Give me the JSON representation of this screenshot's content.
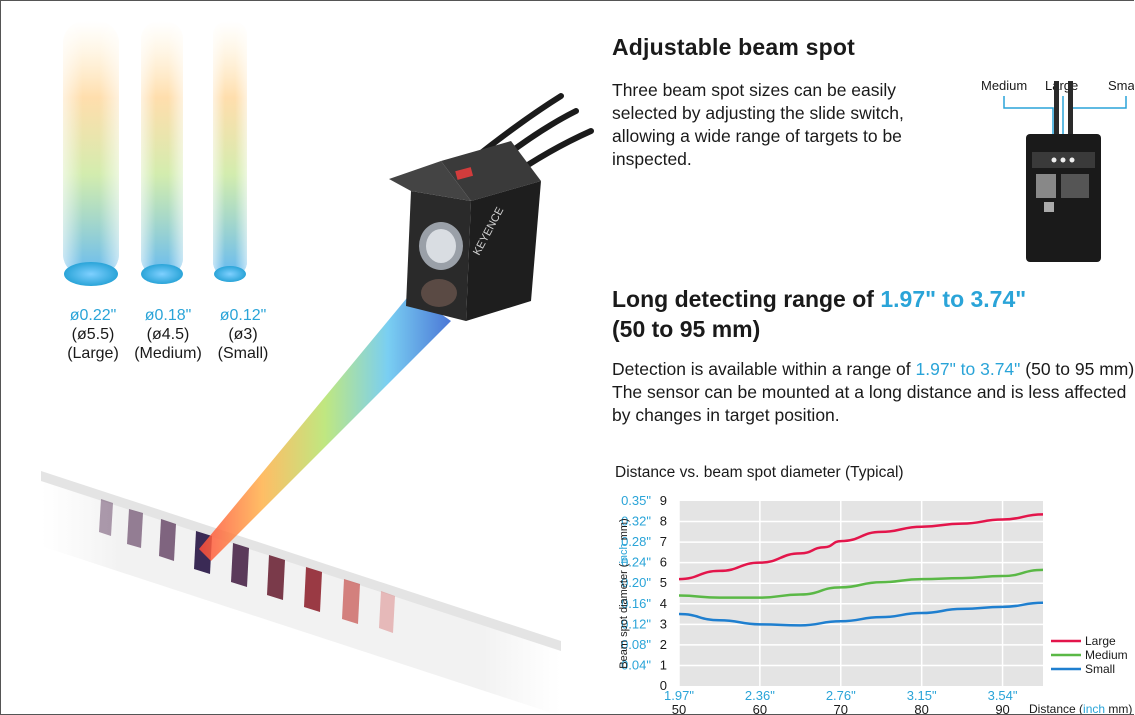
{
  "hero": {
    "spots": [
      {
        "size_inch": "ø0.22\"",
        "size_mm": "(ø5.5)",
        "name": "(Large)"
      },
      {
        "size_inch": "ø0.18\"",
        "size_mm": "(ø4.5)",
        "name": "(Medium)"
      },
      {
        "size_inch": "ø0.12\"",
        "size_mm": "(ø3)",
        "name": "(Small)"
      }
    ],
    "sensor_brand": "KEYENCE"
  },
  "section1": {
    "title": "Adjustable beam spot",
    "body": "Three beam spot sizes can be easily selected by adjusting the slide switch, allowing a wide range of targets to be inspected.",
    "switch_labels": [
      "Medium",
      "Large",
      "Small"
    ]
  },
  "section2": {
    "title_prefix": "Long detecting range of ",
    "title_highlight": "1.97\" to 3.74\"",
    "title_suffix": "(50 to 95 mm)",
    "body_prefix": "Detection is available within a range of ",
    "body_highlight": "1.97\" to 3.74\"",
    "body_suffix": " (50 to 95 mm). The sensor can be mounted at a long distance and is less affected by changes in target position."
  },
  "colors": {
    "accent": "#2aa4d8",
    "large": "#e3154b",
    "medium": "#5ab846",
    "small": "#1f7fcf",
    "plot_bg": "#e4e4e4"
  },
  "chart_data": {
    "type": "line",
    "title": "Distance vs. beam spot diameter (Typical)",
    "ylabel_prefix": "Beam spot diameter (",
    "ylabel_unit_inch": "inch",
    "ylabel_unit_mm": " mm)",
    "xlabel_prefix": "Distance (",
    "xlabel_unit_inch": "inch",
    "xlabel_unit_mm": " mm)",
    "x_ticks_mm": [
      50,
      60,
      70,
      80,
      90
    ],
    "x_ticks_inch": [
      "1.97\"",
      "2.36\"",
      "2.76\"",
      "3.15\"",
      "3.54\""
    ],
    "y_ticks_mm": [
      0,
      1,
      2,
      3,
      4,
      5,
      6,
      7,
      8,
      9
    ],
    "y_ticks_inch": [
      "",
      "0.04\"",
      "0.08\"",
      "0.12\"",
      "0.16\"",
      "0.20\"",
      "0.24\"",
      "0.28\"",
      "0.32\"",
      "0.35\""
    ],
    "xlim": [
      50,
      95
    ],
    "ylim": [
      0,
      9
    ],
    "grid": true,
    "legend_position": "bottom-right",
    "series": [
      {
        "name": "Large",
        "color": "#e3154b",
        "x": [
          50,
          55,
          60,
          65,
          68,
          70,
          75,
          80,
          85,
          90,
          95
        ],
        "y": [
          5.2,
          5.6,
          6.0,
          6.45,
          6.75,
          7.05,
          7.5,
          7.75,
          7.9,
          8.1,
          8.35
        ]
      },
      {
        "name": "Medium",
        "color": "#5ab846",
        "x": [
          50,
          55,
          60,
          65,
          70,
          75,
          80,
          85,
          90,
          95
        ],
        "y": [
          4.4,
          4.3,
          4.3,
          4.45,
          4.8,
          5.05,
          5.2,
          5.25,
          5.35,
          5.65
        ]
      },
      {
        "name": "Small",
        "color": "#1f7fcf",
        "x": [
          50,
          55,
          60,
          65,
          70,
          75,
          80,
          85,
          90,
          95
        ],
        "y": [
          3.5,
          3.2,
          3.0,
          2.95,
          3.15,
          3.35,
          3.55,
          3.75,
          3.85,
          4.05
        ]
      }
    ]
  }
}
